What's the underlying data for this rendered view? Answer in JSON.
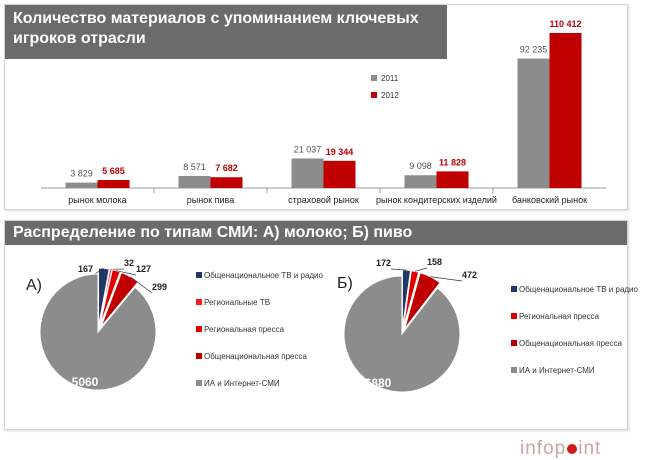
{
  "colors": {
    "y2011": "#8c8c8c",
    "y2012": "#c00000",
    "tv": "#1f3864",
    "regtv": "#ff1a1a",
    "regpress": "#e00000",
    "fedpress": "#c00000",
    "internet": "#8c8c8c"
  },
  "top": {
    "title": "Количество материалов с упоминанием ключевых игроков отрасли"
  },
  "bottom": {
    "title": "Распределение по типам СМИ: А) молоко; Б) пиво"
  },
  "logo": {
    "left": "info",
    "mid": "p",
    "right": "int"
  },
  "chart_data": [
    {
      "type": "bar",
      "title": "Количество материалов с упоминанием ключевых игроков отрасли",
      "categories": [
        "рынок молока",
        "рынок пива",
        "страховой рынок",
        "рынок кондитерских изделий",
        "банковский рынок"
      ],
      "series": [
        {
          "name": "2011",
          "values": [
            3829,
            8571,
            21037,
            9098,
            92235
          ],
          "labels": [
            "3 829",
            "8 571",
            "21 037",
            "9 098",
            "92 235"
          ]
        },
        {
          "name": "2012",
          "values": [
            5685,
            7682,
            19344,
            11828,
            110412
          ],
          "labels": [
            "5 685",
            "7 682",
            "19 344",
            "11 828",
            "110 412"
          ]
        }
      ],
      "ylim": [
        0,
        110412
      ],
      "legend": "upper-middle",
      "grid": false
    },
    {
      "type": "pie",
      "panel_label": "А)",
      "slices": [
        {
          "label": "Общенациональное ТВ и радио",
          "value": 167,
          "color": "#1f3864"
        },
        {
          "label": "Региональные ТВ",
          "value": 32,
          "color": "#ff1a1a"
        },
        {
          "label": "Региональная пресса",
          "value": 127,
          "color": "#e00000"
        },
        {
          "label": "Общенациональная пресса",
          "value": 299,
          "color": "#c00000"
        },
        {
          "label": "ИА и Интернет-СМИ",
          "value": 5060,
          "color": "#8c8c8c"
        }
      ]
    },
    {
      "type": "pie",
      "panel_label": "Б)",
      "slices": [
        {
          "label": "Общенациональное ТВ и радио",
          "value": 172,
          "color": "#1f3864"
        },
        {
          "label": "Региональная пресса",
          "value": 158,
          "color": "#e00000"
        },
        {
          "label": "Общенациональная пресса",
          "value": 472,
          "color": "#c00000"
        },
        {
          "label": "ИА и Интернет-СМИ",
          "value": 6880,
          "color": "#8c8c8c"
        }
      ]
    }
  ]
}
